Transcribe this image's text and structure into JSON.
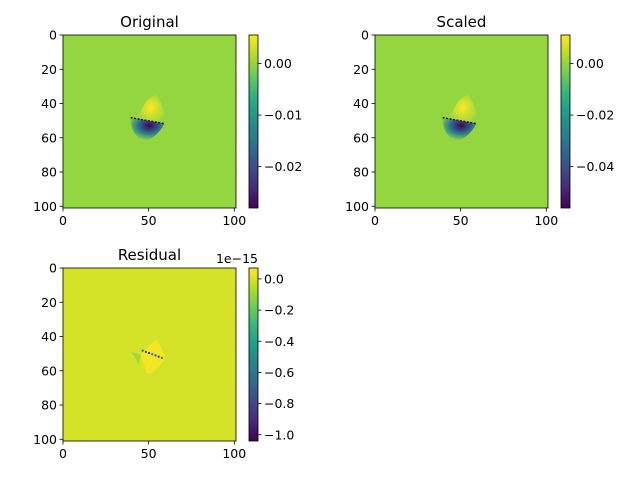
{
  "colormap": {
    "name": "viridis",
    "stops": [
      "#440154",
      "#482878",
      "#3e4a89",
      "#31688e",
      "#26828e",
      "#1f9e89",
      "#35b779",
      "#6ece58",
      "#b5de2b",
      "#fde725"
    ]
  },
  "chart_data": [
    {
      "type": "heatmap",
      "title": "Original",
      "x_ticks": [
        0,
        50,
        100
      ],
      "y_ticks": [
        0,
        20,
        40,
        60,
        80,
        100
      ],
      "xlim": [
        0,
        101
      ],
      "ylim": [
        101,
        0
      ],
      "colorbar": {
        "min": -0.028,
        "max": 0.0055,
        "ticks": [
          0.0,
          -0.01,
          -0.02
        ],
        "tick_labels": [
          "0.00",
          "−0.01",
          "−0.02"
        ],
        "offset_text": ""
      },
      "background_value": 0.0,
      "features": {
        "center": [
          50,
          50
        ],
        "positive_lobe_peak": 0.0055,
        "negative_lobe_peak": -0.028
      }
    },
    {
      "type": "heatmap",
      "title": "Scaled",
      "x_ticks": [
        0,
        50,
        100
      ],
      "y_ticks": [
        0,
        20,
        40,
        60,
        80,
        100
      ],
      "xlim": [
        0,
        101
      ],
      "ylim": [
        101,
        0
      ],
      "colorbar": {
        "min": -0.056,
        "max": 0.011,
        "ticks": [
          0.0,
          -0.02,
          -0.04
        ],
        "tick_labels": [
          "0.00",
          "−0.02",
          "−0.04"
        ],
        "offset_text": ""
      },
      "background_value": 0.0,
      "features": {
        "center": [
          50,
          50
        ],
        "positive_lobe_peak": 0.011,
        "negative_lobe_peak": -0.056
      }
    },
    {
      "type": "heatmap",
      "title": "Residual",
      "x_ticks": [
        0,
        50,
        100
      ],
      "y_ticks": [
        0,
        20,
        40,
        60,
        80,
        100
      ],
      "xlim": [
        0,
        101
      ],
      "ylim": [
        101,
        0
      ],
      "colorbar": {
        "min": -1.04,
        "max": 0.07,
        "ticks": [
          0.0,
          -0.2,
          -0.4,
          -0.6,
          -0.8,
          -1.0
        ],
        "tick_labels": [
          "0.0",
          "−0.2",
          "−0.4",
          "−0.6",
          "−0.8",
          "−1.0"
        ],
        "offset_text": "1e−15"
      },
      "background_value": 0.0,
      "features": {
        "center": [
          50,
          50
        ],
        "positive_lobe_peak": 0.07,
        "negative_lobe_peak": -1.04
      }
    }
  ]
}
